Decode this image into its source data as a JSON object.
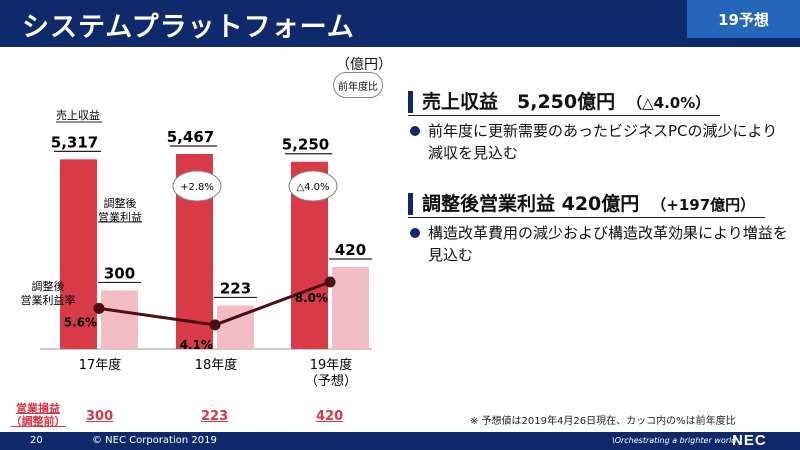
{
  "header": {
    "title": "システムプラットフォーム",
    "tag": "19予想"
  },
  "chart_data": {
    "type": "bar",
    "categories": [
      "17年度",
      "18年度",
      "19年度"
    ],
    "category_sub": [
      "",
      "",
      "（予想）"
    ],
    "unit": "（億円）",
    "yoy_label": "前年度比",
    "revenue_label": "売上収益",
    "op_label": "調整後\n営業利益",
    "margin_label": "調整後\n営業利益率",
    "series": [
      {
        "name": "売上収益",
        "values": [
          5317,
          5467,
          5250
        ],
        "labels": [
          "5,317",
          "5,467",
          "5,250"
        ],
        "color": "#d93a47"
      },
      {
        "name": "調整後営業利益",
        "values": [
          300,
          223,
          420
        ],
        "labels": [
          "300",
          "223",
          "420"
        ],
        "color": "#f2bcc2"
      },
      {
        "name": "調整後営業利益率",
        "values": [
          5.6,
          4.1,
          8.0
        ],
        "labels": [
          "5.6%",
          "4.1%",
          "8.0%"
        ],
        "color": "#4a1016"
      }
    ],
    "yoy_bubbles": [
      "+2.8%",
      "△4.0%"
    ]
  },
  "right": {
    "h1": "売上収益　5,250億円",
    "h1_sub": "（△4.0%）",
    "b1": "前年度に更新需要のあったビジネスPCの減少により減収を見込む",
    "h2": "調整後営業利益 420億円",
    "h2_sub": "（+197億円）",
    "b2": "構造改革費用の減少および構造改革効果により増益を見込む"
  },
  "bottom": {
    "label": "営業損益\n（調整前）",
    "values": [
      "300",
      "223",
      "420"
    ]
  },
  "note": "※ 予想値は2019年4月26日現在、カッコ内の%は前年度比",
  "footer": {
    "page": "20",
    "copy": "© NEC Corporation 2019",
    "slogan": "\\Orchestrating a brighter world",
    "logo": "NEC"
  }
}
